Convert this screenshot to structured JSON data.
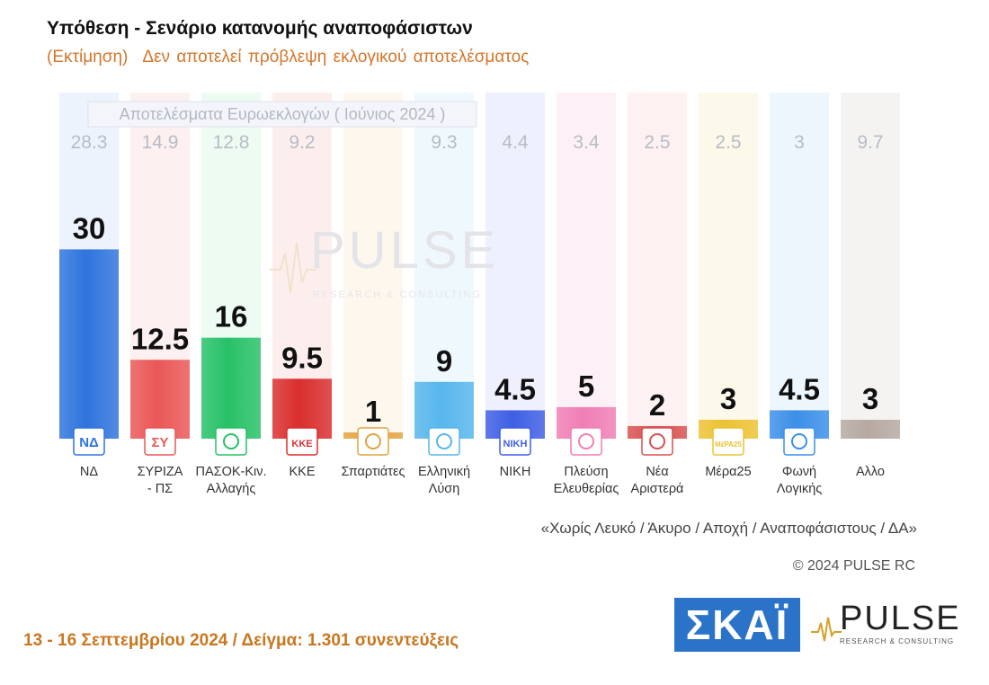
{
  "header": {
    "title": "Υπόθεση - Σενάριο κατανομής αναποφάσιστων",
    "subtitle_a": "(Εκτίμηση)",
    "subtitle_b": "Δεν αποτελεί πρόβλεψη εκλογικού αποτελέσματος"
  },
  "chart_data": {
    "type": "bar",
    "categories": [
      "ΝΔ",
      "ΣΥΡΙΖΑ - ΠΣ",
      "ΠΑΣΟΚ-Κιν. Αλλαγής",
      "ΚΚΕ",
      "Σπαρτιάτες",
      "Ελληνική Λύση",
      "ΝΙΚΗ",
      "Πλεύση Ελευθερίας",
      "Νέα Αριστερά",
      "Μέρα25",
      "Φωνή Λογικής",
      "Αλλο"
    ],
    "label_lines": [
      [
        "ΝΔ"
      ],
      [
        "ΣΥΡΙΖΑ",
        "- ΠΣ"
      ],
      [
        "ΠΑΣΟΚ-Κιν.",
        "Αλλαγής"
      ],
      [
        "ΚΚΕ"
      ],
      [
        "Σπαρτιάτες"
      ],
      [
        "Ελληνική",
        "Λύση"
      ],
      [
        "ΝΙΚΗ"
      ],
      [
        "Πλεύση",
        "Ελευθερίας"
      ],
      [
        "Νέα",
        "Αριστερά"
      ],
      [
        "Μέρα25"
      ],
      [
        "Φωνή",
        "Λογικής"
      ],
      [
        "Αλλο"
      ]
    ],
    "series": [
      {
        "name": "Εκτίμηση",
        "values": [
          30,
          12.5,
          16,
          9.5,
          1,
          9,
          4.5,
          5,
          2,
          3,
          4.5,
          3
        ],
        "value_labels": [
          "30",
          "12.5",
          "16",
          "9.5",
          "1",
          "9",
          "4.5",
          "5",
          "2",
          "3",
          "4.5",
          "3"
        ]
      },
      {
        "name": "Αποτελέσματα Ευρωεκλογών ( Ιούνιος 2024 )",
        "values": [
          28.3,
          14.9,
          12.8,
          9.2,
          null,
          9.3,
          4.4,
          3.4,
          2.5,
          2.5,
          3,
          9.7
        ],
        "value_labels": [
          "28.3",
          "14.9",
          "12.8",
          "9.2",
          "",
          "9.3",
          "4.4",
          "3.4",
          "2.5",
          "2.5",
          "3",
          "9.7"
        ]
      }
    ],
    "colors": [
      "#2f74dd",
      "#ea5757",
      "#27c167",
      "#da2e2e",
      "#e3a23f",
      "#57b6ec",
      "#3e5fe5",
      "#ef7fb5",
      "#d95050",
      "#ecc233",
      "#3b8fe8",
      "#b6a9a2"
    ],
    "background_colors": [
      "#edf3fd",
      "#fdf0f0",
      "#edfbf3",
      "#fdeeee",
      "#fdf7ee",
      "#eef8fd",
      "#eef1fd",
      "#fdf0f7",
      "#fdf1f1",
      "#fdf9ea",
      "#eef6fd",
      "#f5f3f2"
    ],
    "logo_labels": [
      "ΝΔ",
      "ΣΥ",
      "",
      "ΚΚΕ",
      "",
      "",
      "ΝΙΚΗ",
      "",
      "",
      "ΜέΡΑ25",
      "",
      ""
    ],
    "icons": [
      "nd-logo",
      "syriza-logo",
      "pasok-sun-icon",
      "kke-logo",
      "spartan-helmet-icon",
      "compass-icon",
      "niki-logo",
      "ship-icon",
      "nea-aristera-logo",
      "mera25-logo",
      "foni-logikis-logo",
      "none"
    ],
    "legend_position": "top",
    "grid": false,
    "ylim": [
      0,
      35
    ]
  },
  "watermark": {
    "name": "PULSE",
    "tagline": "RESEARCH & CONSULTING"
  },
  "notes": {
    "exclusions": "«Χωρίς Λευκό / Άκυρο / Αποχή / Αναποφάσιστους / ΔΑ»",
    "copyright": "© 2024 PULSE RC"
  },
  "footer": {
    "fieldwork": "13 - 16 Σεπτεμβρίου 2024  /  Δείγμα:  1.301 συνεντεύξεις"
  },
  "logos": {
    "skai": "ΣΚΑΪ",
    "pulse_name": "PULSE",
    "pulse_tagline": "RESEARCH & CONSULTING"
  }
}
